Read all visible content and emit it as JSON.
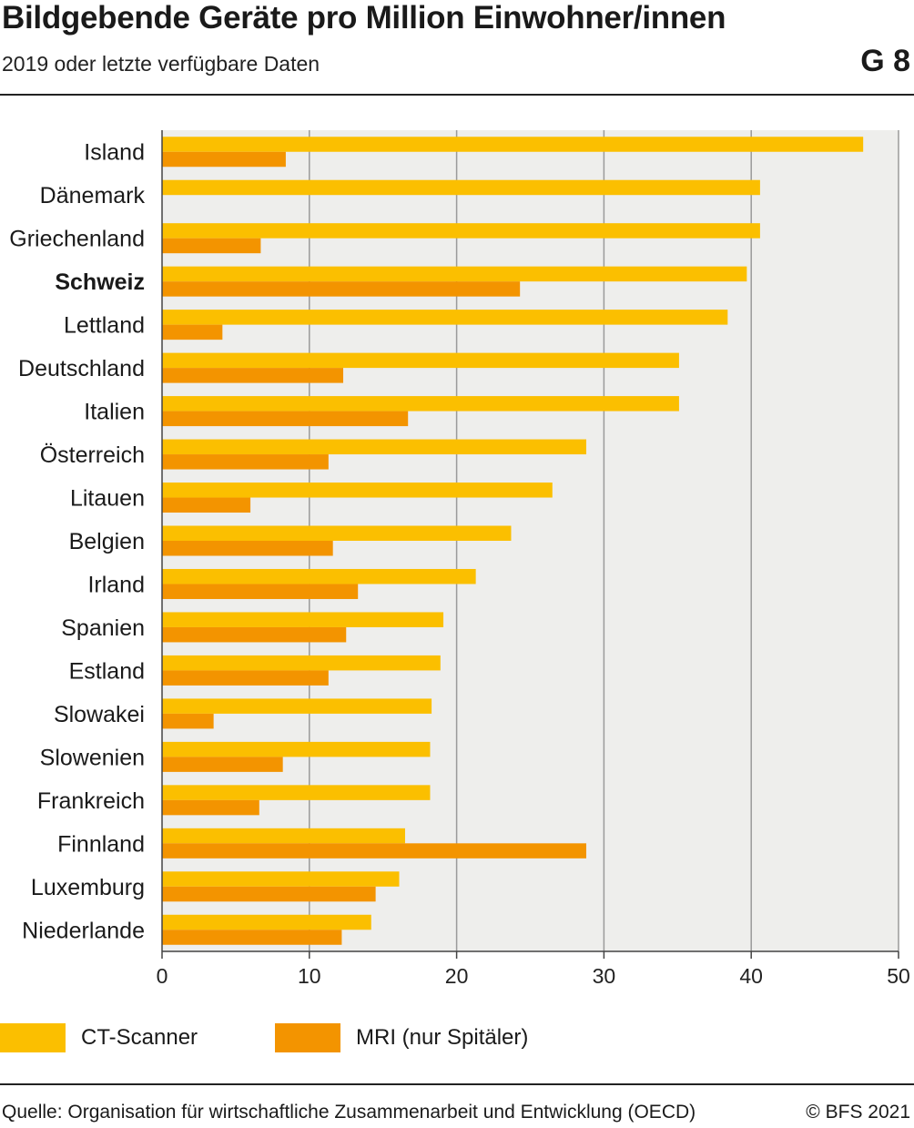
{
  "header": {
    "title": "Bildgebende Geräte pro Million Einwohner/innen",
    "subtitle": "2019 oder letzte verfügbare Daten",
    "chart_number": "G 8"
  },
  "footer": {
    "source": "Quelle: Organisation für wirtschaftliche Zusammenarbeit und Entwicklung (OECD)",
    "copyright": "© BFS 2021"
  },
  "colors": {
    "ct": "#fbbf00",
    "mri": "#f39400",
    "plot_bg": "#eeeeec",
    "grid": "#9a9a9a"
  },
  "chart_data": {
    "type": "bar",
    "orientation": "horizontal",
    "categories": [
      "Island",
      "Dänemark",
      "Griechenland",
      "Schweiz",
      "Lettland",
      "Deutschland",
      "Italien",
      "Österreich",
      "Litauen",
      "Belgien",
      "Irland",
      "Spanien",
      "Estland",
      "Slowakei",
      "Slowenien",
      "Frankreich",
      "Finnland",
      "Luxemburg",
      "Niederlande"
    ],
    "highlight_category": "Schweiz",
    "series": [
      {
        "name": "CT-Scanner",
        "values": [
          47.6,
          40.6,
          40.6,
          39.7,
          38.4,
          35.1,
          35.1,
          28.8,
          26.5,
          23.7,
          21.3,
          19.1,
          18.9,
          18.3,
          18.2,
          18.2,
          16.5,
          16.1,
          14.2
        ]
      },
      {
        "name": "MRI (nur Spitäler)",
        "values": [
          8.4,
          null,
          6.7,
          24.3,
          4.1,
          12.3,
          16.7,
          11.3,
          6.0,
          11.6,
          13.3,
          12.5,
          11.3,
          3.5,
          8.2,
          6.6,
          28.8,
          14.5,
          12.2
        ]
      }
    ],
    "xlim": [
      0,
      50
    ],
    "xticks": [
      0,
      10,
      20,
      30,
      40,
      50
    ],
    "grid": true,
    "legend_position": "bottom-left"
  }
}
